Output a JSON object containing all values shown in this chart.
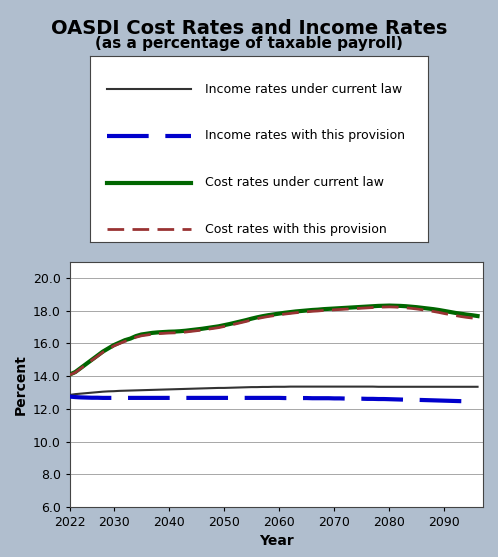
{
  "title": "OASDI Cost Rates and Income Rates",
  "subtitle": "(as a percentage of taxable payroll)",
  "xlabel": "Year",
  "ylabel": "Percent",
  "background_color": "#b0bece",
  "plot_bg_color": "#ffffff",
  "ylim": [
    6.0,
    21.0
  ],
  "yticks": [
    6.0,
    8.0,
    10.0,
    12.0,
    14.0,
    16.0,
    18.0,
    20.0
  ],
  "xlim": [
    2022,
    2097
  ],
  "xticks": [
    2022,
    2030,
    2040,
    2050,
    2060,
    2070,
    2080,
    2090
  ],
  "years": [
    2022,
    2023,
    2024,
    2025,
    2026,
    2027,
    2028,
    2029,
    2030,
    2031,
    2032,
    2033,
    2034,
    2035,
    2036,
    2037,
    2038,
    2039,
    2040,
    2041,
    2042,
    2043,
    2044,
    2045,
    2046,
    2047,
    2048,
    2049,
    2050,
    2051,
    2052,
    2053,
    2054,
    2055,
    2056,
    2057,
    2058,
    2059,
    2060,
    2061,
    2062,
    2063,
    2064,
    2065,
    2066,
    2067,
    2068,
    2069,
    2070,
    2071,
    2072,
    2073,
    2074,
    2075,
    2076,
    2077,
    2078,
    2079,
    2080,
    2081,
    2082,
    2083,
    2084,
    2085,
    2086,
    2087,
    2088,
    2089,
    2090,
    2091,
    2092,
    2093,
    2094,
    2095,
    2096
  ],
  "income_current_law": [
    12.85,
    12.9,
    12.93,
    12.96,
    12.99,
    13.02,
    13.05,
    13.07,
    13.08,
    13.1,
    13.11,
    13.12,
    13.13,
    13.14,
    13.15,
    13.16,
    13.17,
    13.18,
    13.19,
    13.2,
    13.21,
    13.22,
    13.23,
    13.24,
    13.25,
    13.26,
    13.27,
    13.28,
    13.28,
    13.29,
    13.3,
    13.31,
    13.32,
    13.33,
    13.33,
    13.34,
    13.34,
    13.35,
    13.35,
    13.35,
    13.36,
    13.36,
    13.36,
    13.36,
    13.36,
    13.36,
    13.36,
    13.36,
    13.36,
    13.36,
    13.36,
    13.36,
    13.36,
    13.36,
    13.36,
    13.36,
    13.35,
    13.35,
    13.35,
    13.35,
    13.35,
    13.35,
    13.35,
    13.35,
    13.35,
    13.35,
    13.35,
    13.35,
    13.35,
    13.35,
    13.35,
    13.35,
    13.35,
    13.35,
    13.35
  ],
  "income_provision": [
    12.75,
    12.72,
    12.7,
    12.69,
    12.68,
    12.68,
    12.67,
    12.67,
    12.67,
    12.67,
    12.67,
    12.67,
    12.67,
    12.67,
    12.67,
    12.67,
    12.67,
    12.67,
    12.67,
    12.67,
    12.67,
    12.67,
    12.67,
    12.67,
    12.67,
    12.67,
    12.67,
    12.67,
    12.67,
    12.67,
    12.67,
    12.67,
    12.67,
    12.67,
    12.67,
    12.67,
    12.67,
    12.67,
    12.67,
    12.66,
    12.66,
    12.66,
    12.66,
    12.66,
    12.65,
    12.65,
    12.65,
    12.65,
    12.64,
    12.64,
    12.63,
    12.63,
    12.62,
    12.62,
    12.61,
    12.61,
    12.6,
    12.6,
    12.59,
    12.58,
    12.57,
    12.56,
    12.55,
    12.55,
    12.54,
    12.53,
    12.52,
    12.51,
    12.5,
    12.49,
    12.48,
    12.47,
    12.46,
    12.45,
    12.45
  ],
  "cost_current_law": [
    14.1,
    14.25,
    14.5,
    14.75,
    15.0,
    15.25,
    15.5,
    15.7,
    15.9,
    16.05,
    16.2,
    16.3,
    16.45,
    16.55,
    16.6,
    16.65,
    16.68,
    16.7,
    16.72,
    16.73,
    16.75,
    16.78,
    16.82,
    16.86,
    16.9,
    16.95,
    17.0,
    17.05,
    17.12,
    17.19,
    17.27,
    17.35,
    17.43,
    17.52,
    17.6,
    17.67,
    17.73,
    17.78,
    17.83,
    17.88,
    17.92,
    17.96,
    17.99,
    18.02,
    18.05,
    18.07,
    18.1,
    18.12,
    18.14,
    18.16,
    18.18,
    18.2,
    18.22,
    18.24,
    18.26,
    18.28,
    18.3,
    18.31,
    18.32,
    18.31,
    18.3,
    18.28,
    18.25,
    18.22,
    18.18,
    18.14,
    18.1,
    18.05,
    17.99,
    17.93,
    17.87,
    17.82,
    17.77,
    17.73,
    17.68
  ],
  "cost_provision": [
    14.08,
    14.22,
    14.47,
    14.72,
    14.97,
    15.21,
    15.46,
    15.65,
    15.85,
    15.99,
    16.13,
    16.23,
    16.38,
    16.47,
    16.52,
    16.57,
    16.6,
    16.62,
    16.64,
    16.65,
    16.67,
    16.7,
    16.74,
    16.78,
    16.82,
    16.87,
    16.92,
    16.97,
    17.04,
    17.11,
    17.19,
    17.27,
    17.35,
    17.44,
    17.52,
    17.59,
    17.65,
    17.7,
    17.75,
    17.8,
    17.84,
    17.88,
    17.91,
    17.94,
    17.97,
    17.99,
    18.02,
    18.04,
    18.06,
    18.08,
    18.1,
    18.12,
    18.14,
    18.16,
    18.18,
    18.2,
    18.22,
    18.23,
    18.24,
    18.23,
    18.21,
    18.18,
    18.15,
    18.11,
    18.06,
    18.01,
    17.96,
    17.9,
    17.83,
    17.77,
    17.71,
    17.65,
    17.6,
    17.56,
    17.52
  ],
  "income_current_law_color": "#333333",
  "income_provision_color": "#0000cc",
  "cost_current_law_color": "#006600",
  "cost_provision_color": "#993333",
  "legend_labels": [
    "Income rates under current law",
    "Income rates with this provision",
    "Cost rates under current law",
    "Cost rates with this provision"
  ],
  "title_fontsize": 14,
  "subtitle_fontsize": 11,
  "axis_label_fontsize": 10,
  "tick_fontsize": 9,
  "legend_fontsize": 9
}
